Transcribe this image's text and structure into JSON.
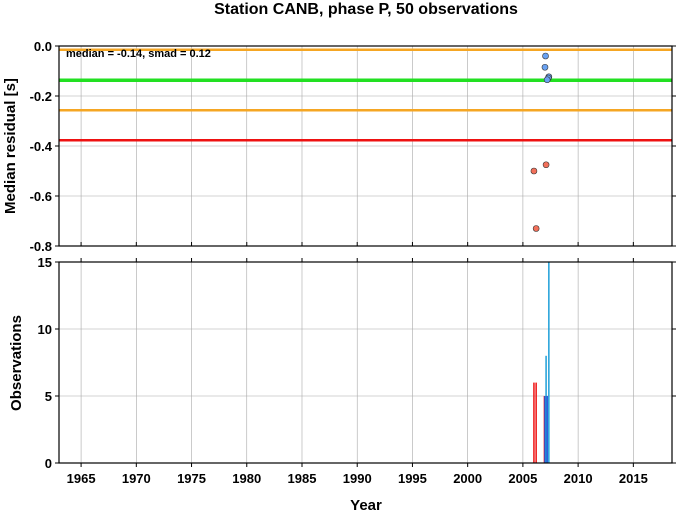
{
  "chart_data": [
    {
      "type": "scatter",
      "title": "Station CANB, phase P, 50 observations",
      "xlabel": "",
      "ylabel": "Median residual [s]",
      "xlim": [
        1963,
        2018.5
      ],
      "ylim": [
        -0.8,
        0.0
      ],
      "yticks": [
        0.0,
        -0.2,
        -0.4,
        -0.6,
        -0.8
      ],
      "ytick_labels": [
        "0.0",
        "-0.2",
        "-0.4",
        "-0.6",
        "-0.8"
      ],
      "grid": true,
      "annotation": "median = -0.14, smad = 0.12",
      "hlines": [
        {
          "y": -0.015,
          "color": "#f5a623"
        },
        {
          "y": -0.137,
          "color": "#22e022"
        },
        {
          "y": -0.257,
          "color": "#f5a623"
        },
        {
          "y": -0.377,
          "color": "#ee1111"
        }
      ],
      "series": [
        {
          "color": "#6aa2f2",
          "points": [
            [
              2007.05,
              -0.04
            ],
            [
              2007.0,
              -0.085
            ],
            [
              2007.35,
              -0.123
            ],
            [
              2007.3,
              -0.128
            ],
            [
              2007.2,
              -0.135
            ]
          ]
        },
        {
          "color": "#f2705a",
          "points": [
            [
              2006.0,
              -0.5
            ],
            [
              2007.1,
              -0.475
            ],
            [
              2006.2,
              -0.73
            ]
          ]
        }
      ]
    },
    {
      "type": "bar",
      "xlabel": "Year",
      "ylabel": "Observations",
      "xlim": [
        1963,
        2018.5
      ],
      "ylim": [
        0,
        15
      ],
      "xticks": [
        1965,
        1970,
        1975,
        1980,
        1985,
        1990,
        1995,
        2000,
        2005,
        2010,
        2015
      ],
      "xtick_labels": [
        "1965",
        "1970",
        "1975",
        "1980",
        "1985",
        "1990",
        "1995",
        "2000",
        "2005",
        "2010",
        "2015"
      ],
      "yticks": [
        0,
        5,
        10,
        15
      ],
      "ytick_labels": [
        "0",
        "5",
        "10",
        "15"
      ],
      "grid": true,
      "bars": [
        {
          "x": 2006.0,
          "value": 6,
          "color": "#ee1111"
        },
        {
          "x": 2006.2,
          "value": 6,
          "color": "#ee1111"
        },
        {
          "x": 2006.95,
          "value": 5,
          "color": "#ee1111"
        },
        {
          "x": 2007.0,
          "value": 5,
          "color": "#2a52d8"
        },
        {
          "x": 2007.1,
          "value": 8,
          "color": "#1e9fd8"
        },
        {
          "x": 2007.2,
          "value": 5,
          "color": "#2a52d8"
        },
        {
          "x": 2007.35,
          "value": 15,
          "color": "#1e9fd8"
        }
      ]
    }
  ]
}
